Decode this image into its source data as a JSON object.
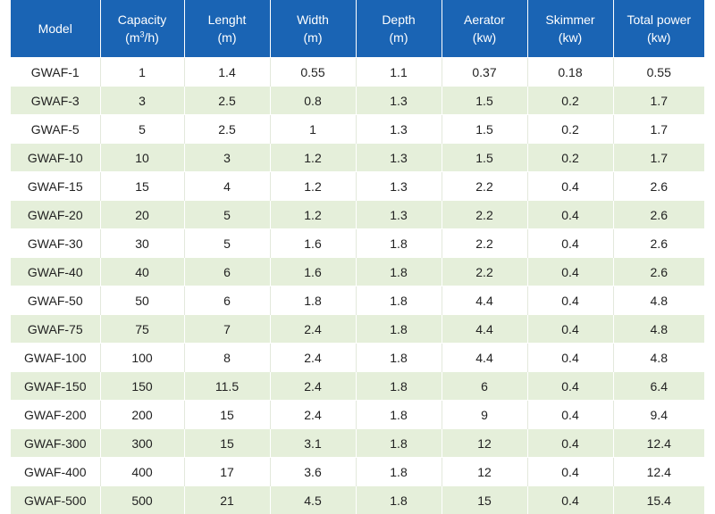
{
  "table": {
    "headers": [
      {
        "line1": "Model",
        "line2": ""
      },
      {
        "line1": "Capacity",
        "line2": "(m",
        "sup": "3",
        "line2_tail": "/h)"
      },
      {
        "line1": "Lenght",
        "line2": "(m)"
      },
      {
        "line1": "Width",
        "line2": "(m)"
      },
      {
        "line1": "Depth",
        "line2": "(m)"
      },
      {
        "line1": "Aerator",
        "line2": "(kw)"
      },
      {
        "line1": "Skimmer",
        "line2": "(kw)"
      },
      {
        "line1": "Total power",
        "line2": "(kw)"
      }
    ],
    "rows": [
      [
        "GWAF-1",
        "1",
        "1.4",
        "0.55",
        "1.1",
        "0.37",
        "0.18",
        "0.55"
      ],
      [
        "GWAF-3",
        "3",
        "2.5",
        "0.8",
        "1.3",
        "1.5",
        "0.2",
        "1.7"
      ],
      [
        "GWAF-5",
        "5",
        "2.5",
        "1",
        "1.3",
        "1.5",
        "0.2",
        "1.7"
      ],
      [
        "GWAF-10",
        "10",
        "3",
        "1.2",
        "1.3",
        "1.5",
        "0.2",
        "1.7"
      ],
      [
        "GWAF-15",
        "15",
        "4",
        "1.2",
        "1.3",
        "2.2",
        "0.4",
        "2.6"
      ],
      [
        "GWAF-20",
        "20",
        "5",
        "1.2",
        "1.3",
        "2.2",
        "0.4",
        "2.6"
      ],
      [
        "GWAF-30",
        "30",
        "5",
        "1.6",
        "1.8",
        "2.2",
        "0.4",
        "2.6"
      ],
      [
        "GWAF-40",
        "40",
        "6",
        "1.6",
        "1.8",
        "2.2",
        "0.4",
        "2.6"
      ],
      [
        "GWAF-50",
        "50",
        "6",
        "1.8",
        "1.8",
        "4.4",
        "0.4",
        "4.8"
      ],
      [
        "GWAF-75",
        "75",
        "7",
        "2.4",
        "1.8",
        "4.4",
        "0.4",
        "4.8"
      ],
      [
        "GWAF-100",
        "100",
        "8",
        "2.4",
        "1.8",
        "4.4",
        "0.4",
        "4.8"
      ],
      [
        "GWAF-150",
        "150",
        "11.5",
        "2.4",
        "1.8",
        "6",
        "0.4",
        "6.4"
      ],
      [
        "GWAF-200",
        "200",
        "15",
        "2.4",
        "1.8",
        "9",
        "0.4",
        "9.4"
      ],
      [
        "GWAF-300",
        "300",
        "15",
        "3.1",
        "1.8",
        "12",
        "0.4",
        "12.4"
      ],
      [
        "GWAF-400",
        "400",
        "17",
        "3.6",
        "1.8",
        "12",
        "0.4",
        "12.4"
      ],
      [
        "GWAF-500",
        "500",
        "21",
        "4.5",
        "1.8",
        "15",
        "0.4",
        "15.4"
      ]
    ]
  },
  "colors": {
    "header_bg": "#1a64b4",
    "header_text": "#ffffff",
    "row_even_bg": "#e5efda",
    "row_odd_bg": "#ffffff"
  }
}
